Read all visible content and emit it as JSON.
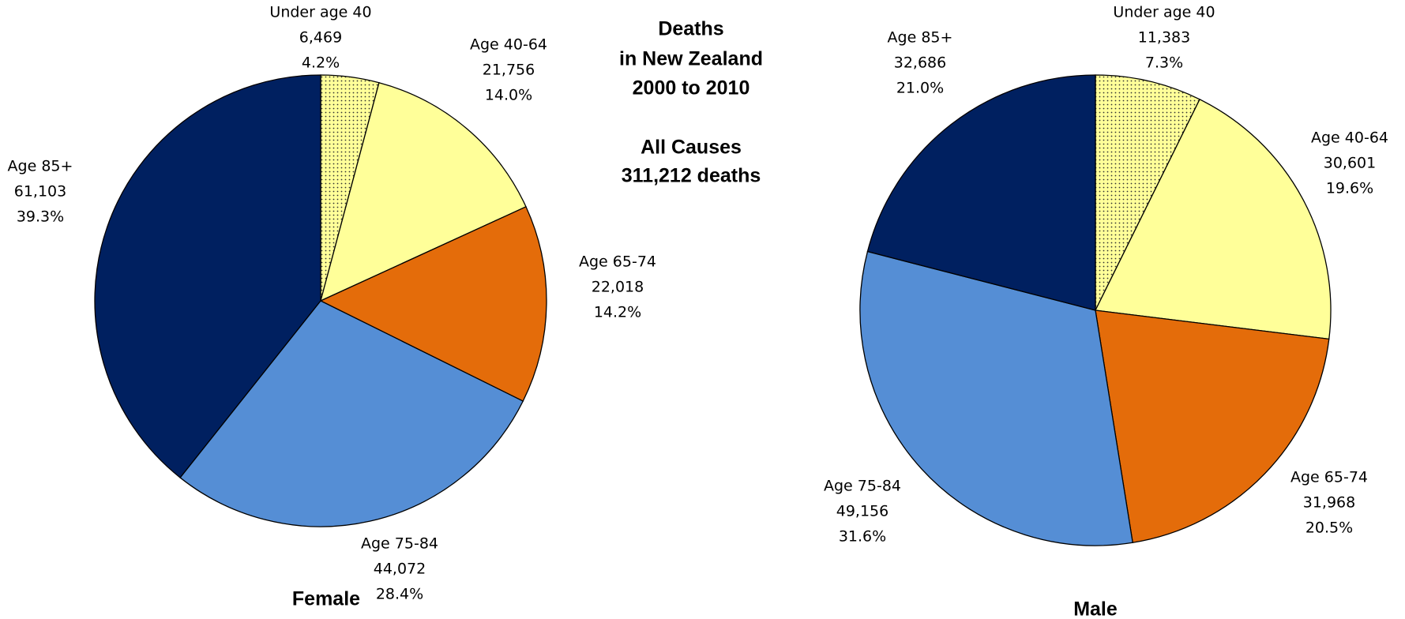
{
  "header": {
    "title": [
      "Deaths",
      "in New Zealand",
      "2000 to 2010"
    ],
    "subtitle": [
      "All Causes",
      "311,212 deaths"
    ]
  },
  "chart_data": [
    {
      "type": "pie",
      "title": "Female",
      "categories": [
        "Under age 40",
        "Age 40-64",
        "Age 65-74",
        "Age 75-84",
        "Age 85+"
      ],
      "values": [
        6469,
        21756,
        22018,
        44072,
        61103
      ],
      "value_labels": [
        "6,469",
        "21,756",
        "22,018",
        "44,072",
        "61,103"
      ],
      "percent_labels": [
        "4.2%",
        "14.0%",
        "14.2%",
        "28.4%",
        "39.3%"
      ],
      "colors": [
        "#ffff99",
        "#ffff99",
        "#e46c0a",
        "#558ed5",
        "#002060"
      ],
      "patterns": [
        "dots",
        "solid",
        "solid",
        "solid",
        "solid"
      ]
    },
    {
      "type": "pie",
      "title": "Male",
      "categories": [
        "Under age 40",
        "Age 40-64",
        "Age 65-74",
        "Age 75-84",
        "Age 85+"
      ],
      "values": [
        11383,
        30601,
        31968,
        49156,
        32686
      ],
      "value_labels": [
        "11,383",
        "30,601",
        "31,968",
        "49,156",
        "32,686"
      ],
      "percent_labels": [
        "7.3%",
        "19.6%",
        "20.5%",
        "31.6%",
        "21.0%"
      ],
      "colors": [
        "#ffff99",
        "#ffff99",
        "#e46c0a",
        "#558ed5",
        "#002060"
      ],
      "patterns": [
        "dots",
        "solid",
        "solid",
        "solid",
        "solid"
      ]
    }
  ]
}
